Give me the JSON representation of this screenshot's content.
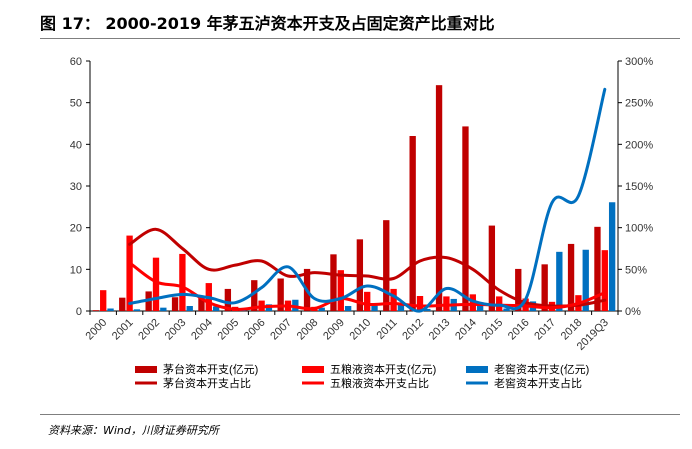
{
  "title": "图 17：  2000-2019 年茅五泸资本开支及占固定资产比重对比",
  "source": "资料来源：Wind，川财证券研究所",
  "chart_data": {
    "type": "bar",
    "categories": [
      "2000",
      "2001",
      "2002",
      "2003",
      "2004",
      "2005",
      "2006",
      "2007",
      "2008",
      "2009",
      "2010",
      "2011",
      "2012",
      "2013",
      "2014",
      "2015",
      "2016",
      "2017",
      "2018",
      "2019Q3"
    ],
    "ylim": [
      0,
      60
    ],
    "yticks": [
      0,
      10,
      20,
      30,
      40,
      50,
      60
    ],
    "y2lim": [
      0,
      300
    ],
    "y2ticks": [
      "0%",
      "50%",
      "100%",
      "150%",
      "200%",
      "250%",
      "300%"
    ],
    "grid": false,
    "legend_placement": "bottom",
    "bar_series": [
      {
        "name": "茅台资本开支(亿元)",
        "color": "#c00000",
        "values": [
          0.2,
          3.2,
          4.7,
          3.3,
          3.2,
          5.3,
          7.4,
          7.8,
          10.1,
          13.6,
          17.2,
          21.8,
          42.0,
          54.2,
          44.3,
          20.5,
          10.1,
          11.2,
          16.1,
          20.2
        ]
      },
      {
        "name": "五粮液资本开支(亿元)",
        "color": "#ff0000",
        "values": [
          5.0,
          18.1,
          12.8,
          13.7,
          6.7,
          1.0,
          2.5,
          2.5,
          1.0,
          9.8,
          4.6,
          5.3,
          3.6,
          3.5,
          4.0,
          3.5,
          3.0,
          2.2,
          3.8,
          14.6
        ]
      },
      {
        "name": "老窖资本开支(亿元)",
        "color": "#0070c0",
        "values": [
          0.6,
          0.4,
          0.8,
          1.2,
          1.1,
          0.5,
          1.6,
          2.7,
          0.8,
          1.2,
          1.3,
          1.9,
          0.5,
          2.9,
          1.5,
          0.6,
          2.3,
          14.2,
          14.7,
          26.1
        ]
      }
    ],
    "line_series": [
      {
        "name": "茅台资本开支占比",
        "color": "#c00000",
        "axis": "right",
        "values": [
          null,
          80,
          98,
          75,
          50,
          55,
          60,
          42,
          46,
          43,
          42,
          39,
          60,
          64,
          50,
          25,
          10,
          6,
          7,
          13
        ]
      },
      {
        "name": "五粮液资本开支占比",
        "color": "#ff0000",
        "axis": "right",
        "values": [
          null,
          58,
          35,
          29,
          10,
          2,
          5,
          6,
          3,
          15,
          8,
          9,
          6,
          7,
          8,
          7,
          6,
          4,
          9,
          22
        ]
      },
      {
        "name": "老窖资本开支占比",
        "color": "#0070c0",
        "axis": "right",
        "values": [
          null,
          9,
          15,
          20,
          16,
          10,
          28,
          53,
          15,
          15,
          30,
          18,
          0,
          27,
          12,
          7,
          14,
          130,
          138,
          266
        ]
      }
    ]
  }
}
